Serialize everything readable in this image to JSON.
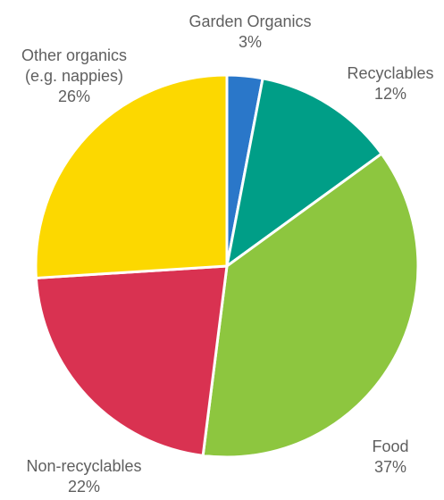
{
  "chart_data": {
    "type": "pie",
    "start_angle_deg": 0,
    "direction": "clockwise",
    "slices": [
      {
        "label": "Garden Organics",
        "value": 3,
        "value_label": "3%",
        "color": "#2a77c9"
      },
      {
        "label": "Recyclables",
        "value": 12,
        "value_label": "12%",
        "color": "#009e87"
      },
      {
        "label": "Food",
        "value": 37,
        "value_label": "37%",
        "color": "#8dc63f"
      },
      {
        "label": "Non-recyclables",
        "value": 22,
        "value_label": "22%",
        "color": "#d93251"
      },
      {
        "label": "Other organics\n(e.g. nappies)",
        "value": 26,
        "value_label": "26%",
        "color": "#fcd800"
      }
    ]
  }
}
